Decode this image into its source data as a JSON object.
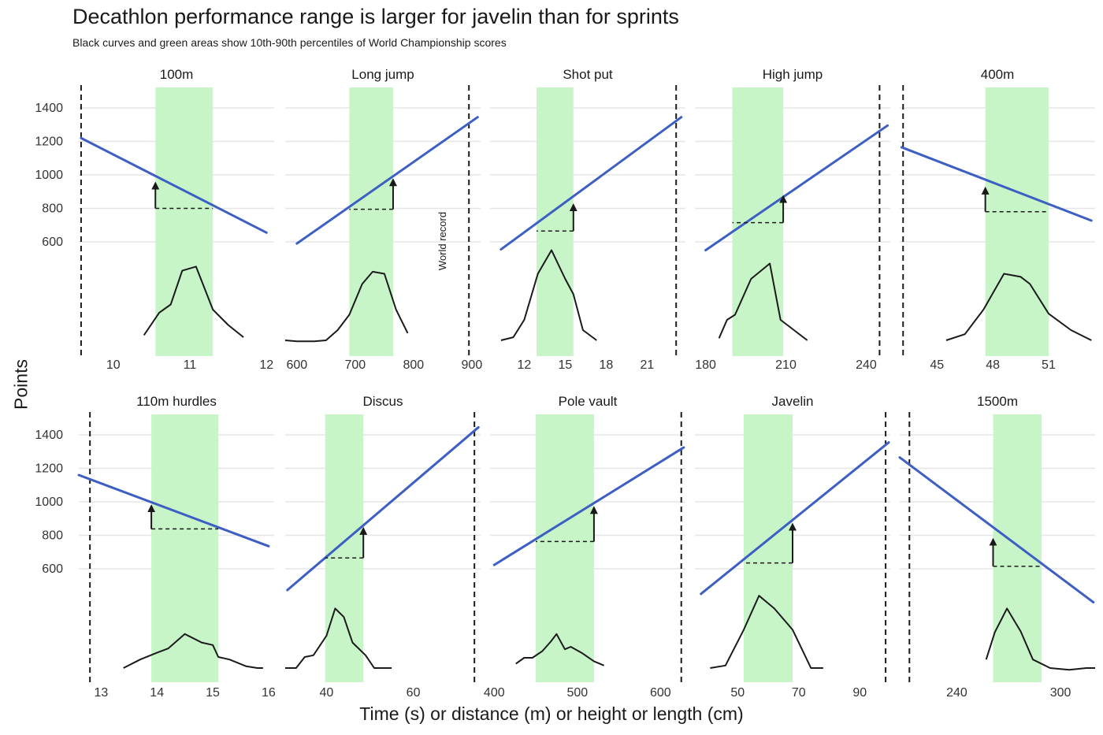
{
  "title": "Decathlon performance range is larger for javelin than for sprints",
  "subtitle": "Black curves and green areas show 10th-90th percentiles of World Championship scores",
  "xlabel": "Time (s) or distance (m) or height or length (cm)",
  "ylabel": "Points",
  "record_label": "World record",
  "colors": {
    "band": "#c8f5c8",
    "line": "#3d5fc4",
    "density": "#1a1a1a",
    "grid": "#e5e5e5",
    "text": "#333333"
  },
  "chart_data": {
    "type": "line",
    "y_ticks": [
      600,
      800,
      1000,
      1200,
      1400
    ],
    "ylim_points": [
      600,
      1400
    ],
    "grid": true,
    "facets": [
      {
        "name": "100m",
        "xlim": [
          9.55,
          12.1
        ],
        "x_ticks": [
          10,
          11,
          12
        ],
        "record": 9.58,
        "band": [
          10.55,
          11.3
        ],
        "line": [
          [
            9.58,
            1220
          ],
          [
            12.0,
            655
          ]
        ],
        "arrow": {
          "x": 10.55,
          "y_from": 800,
          "y_to": 960,
          "x_end": 11.3
        },
        "density": [
          [
            10.4,
            0.05
          ],
          [
            10.6,
            0.27
          ],
          [
            10.75,
            0.35
          ],
          [
            10.9,
            0.68
          ],
          [
            11.08,
            0.72
          ],
          [
            11.3,
            0.3
          ],
          [
            11.5,
            0.15
          ],
          [
            11.7,
            0.03
          ]
        ]
      },
      {
        "name": "Long jump",
        "xlim": [
          580,
          915
        ],
        "x_ticks": [
          600,
          700,
          800,
          900
        ],
        "record": 895,
        "band": [
          690,
          765
        ],
        "line": [
          [
            600,
            590
          ],
          [
            910,
            1345
          ]
        ],
        "arrow": {
          "x": 765,
          "y_from": 795,
          "y_to": 980,
          "x_end": 690
        },
        "density": [
          [
            580,
            0.0
          ],
          [
            600,
            -0.01
          ],
          [
            630,
            -0.01
          ],
          [
            650,
            0.0
          ],
          [
            670,
            0.1
          ],
          [
            690,
            0.25
          ],
          [
            712,
            0.55
          ],
          [
            730,
            0.67
          ],
          [
            750,
            0.65
          ],
          [
            770,
            0.3
          ],
          [
            790,
            0.07
          ]
        ]
      },
      {
        "name": "Shot put",
        "xlim": [
          9.5,
          23.8
        ],
        "x_ticks": [
          12,
          15,
          18,
          21
        ],
        "record": 23.12,
        "band": [
          12.9,
          15.6
        ],
        "line": [
          [
            10.3,
            555
          ],
          [
            23.5,
            1345
          ]
        ],
        "arrow": {
          "x": 15.6,
          "y_from": 665,
          "y_to": 830,
          "x_end": 12.9
        },
        "density": [
          [
            10.3,
            0.0
          ],
          [
            11.2,
            0.03
          ],
          [
            12.0,
            0.2
          ],
          [
            13.0,
            0.65
          ],
          [
            14.0,
            0.88
          ],
          [
            15.0,
            0.6
          ],
          [
            15.6,
            0.45
          ],
          [
            16.3,
            0.1
          ],
          [
            17.3,
            0.0
          ]
        ]
      },
      {
        "name": "High jump",
        "xlim": [
          176,
          249
        ],
        "x_ticks": [
          180,
          210,
          240
        ],
        "record": 245,
        "band": [
          190,
          209
        ],
        "line": [
          [
            180,
            550
          ],
          [
            248,
            1295
          ]
        ],
        "arrow": {
          "x": 209,
          "y_from": 715,
          "y_to": 880,
          "x_end": 190
        },
        "density": [
          [
            185,
            0.02
          ],
          [
            188,
            0.2
          ],
          [
            191,
            0.25
          ],
          [
            197,
            0.6
          ],
          [
            204,
            0.75
          ],
          [
            208,
            0.2
          ],
          [
            213,
            0.1
          ],
          [
            218,
            0.0
          ]
        ]
      },
      {
        "name": "400m",
        "xlim": [
          43.0,
          53.5
        ],
        "x_ticks": [
          45,
          48,
          51
        ],
        "record": 43.18,
        "band": [
          47.6,
          51.0
        ],
        "line": [
          [
            43.1,
            1165
          ],
          [
            53.3,
            727
          ]
        ],
        "arrow": {
          "x": 47.6,
          "y_from": 780,
          "y_to": 930,
          "x_end": 51.0
        },
        "density": [
          [
            45.5,
            0.0
          ],
          [
            46.5,
            0.06
          ],
          [
            47.5,
            0.3
          ],
          [
            48.6,
            0.65
          ],
          [
            49.5,
            0.62
          ],
          [
            50.0,
            0.55
          ],
          [
            51.0,
            0.26
          ],
          [
            52.2,
            0.1
          ],
          [
            53.3,
            0.0
          ]
        ]
      },
      {
        "name": "110m hurdles",
        "xlim": [
          12.6,
          16.1
        ],
        "x_ticks": [
          13,
          14,
          15,
          16
        ],
        "record": 12.8,
        "band": [
          13.9,
          15.1
        ],
        "line": [
          [
            12.6,
            1160
          ],
          [
            16.0,
            735
          ]
        ],
        "arrow": {
          "x": 13.9,
          "y_from": 838,
          "y_to": 985,
          "x_end": 15.1
        },
        "density": [
          [
            13.4,
            0.0
          ],
          [
            13.7,
            0.1
          ],
          [
            14.0,
            0.18
          ],
          [
            14.2,
            0.23
          ],
          [
            14.5,
            0.4
          ],
          [
            14.8,
            0.3
          ],
          [
            15.0,
            0.27
          ],
          [
            15.1,
            0.13
          ],
          [
            15.3,
            0.1
          ],
          [
            15.6,
            0.02
          ],
          [
            15.8,
            0.0
          ],
          [
            15.9,
            0.0
          ]
        ]
      },
      {
        "name": "Discus",
        "xlim": [
          30.5,
          75.5
        ],
        "x_ticks": [
          40,
          60
        ],
        "record": 74.08,
        "band": [
          39.7,
          48.5
        ],
        "line": [
          [
            31.0,
            473
          ],
          [
            75.0,
            1445
          ]
        ],
        "arrow": {
          "x": 48.5,
          "y_from": 665,
          "y_to": 850,
          "x_end": 39.7
        },
        "density": [
          [
            30.5,
            0.0
          ],
          [
            33,
            0.0
          ],
          [
            35,
            0.13
          ],
          [
            37,
            0.15
          ],
          [
            40,
            0.38
          ],
          [
            42,
            0.7
          ],
          [
            44,
            0.6
          ],
          [
            46,
            0.3
          ],
          [
            49,
            0.15
          ],
          [
            51,
            0.0
          ],
          [
            55,
            0.0
          ]
        ]
      },
      {
        "name": "Pole vault",
        "xlim": [
          395,
          630
        ],
        "x_ticks": [
          400,
          500,
          600
        ],
        "record": 625,
        "band": [
          450,
          520
        ],
        "line": [
          [
            400,
            623
          ],
          [
            628,
            1325
          ]
        ],
        "arrow": {
          "x": 520,
          "y_from": 763,
          "y_to": 975,
          "x_end": 450
        },
        "density": [
          [
            426,
            0.05
          ],
          [
            436,
            0.12
          ],
          [
            446,
            0.12
          ],
          [
            458,
            0.2
          ],
          [
            468,
            0.31
          ],
          [
            475,
            0.4
          ],
          [
            485,
            0.22
          ],
          [
            492,
            0.25
          ],
          [
            505,
            0.18
          ],
          [
            520,
            0.08
          ],
          [
            532,
            0.03
          ]
        ]
      },
      {
        "name": "Javelin",
        "xlim": [
          36.0,
          100.0
        ],
        "x_ticks": [
          50,
          70,
          90
        ],
        "record": 98.48,
        "band": [
          52.0,
          68.0
        ],
        "line": [
          [
            38.0,
            450
          ],
          [
            99.5,
            1355
          ]
        ],
        "arrow": {
          "x": 68.0,
          "y_from": 635,
          "y_to": 875,
          "x_end": 52.0
        },
        "density": [
          [
            41,
            0.0
          ],
          [
            46,
            0.03
          ],
          [
            52,
            0.45
          ],
          [
            57,
            0.85
          ],
          [
            62,
            0.7
          ],
          [
            68,
            0.45
          ],
          [
            70,
            0.3
          ],
          [
            74,
            0.0
          ],
          [
            78,
            0.0
          ]
        ]
      },
      {
        "name": "1500m",
        "xlim": [
          207,
          320
        ],
        "x_ticks": [
          240,
          300
        ],
        "record": 212.6,
        "band": [
          261,
          289
        ],
        "line": [
          [
            207,
            1265
          ],
          [
            319,
            400
          ]
        ],
        "arrow": {
          "x": 261,
          "y_from": 615,
          "y_to": 785,
          "x_end": 289
        },
        "density": [
          [
            257,
            0.1
          ],
          [
            262,
            0.42
          ],
          [
            269,
            0.7
          ],
          [
            277,
            0.43
          ],
          [
            284,
            0.1
          ],
          [
            294,
            0.0
          ],
          [
            305,
            -0.02
          ],
          [
            315,
            0.0
          ],
          [
            320,
            0.0
          ]
        ]
      }
    ]
  }
}
